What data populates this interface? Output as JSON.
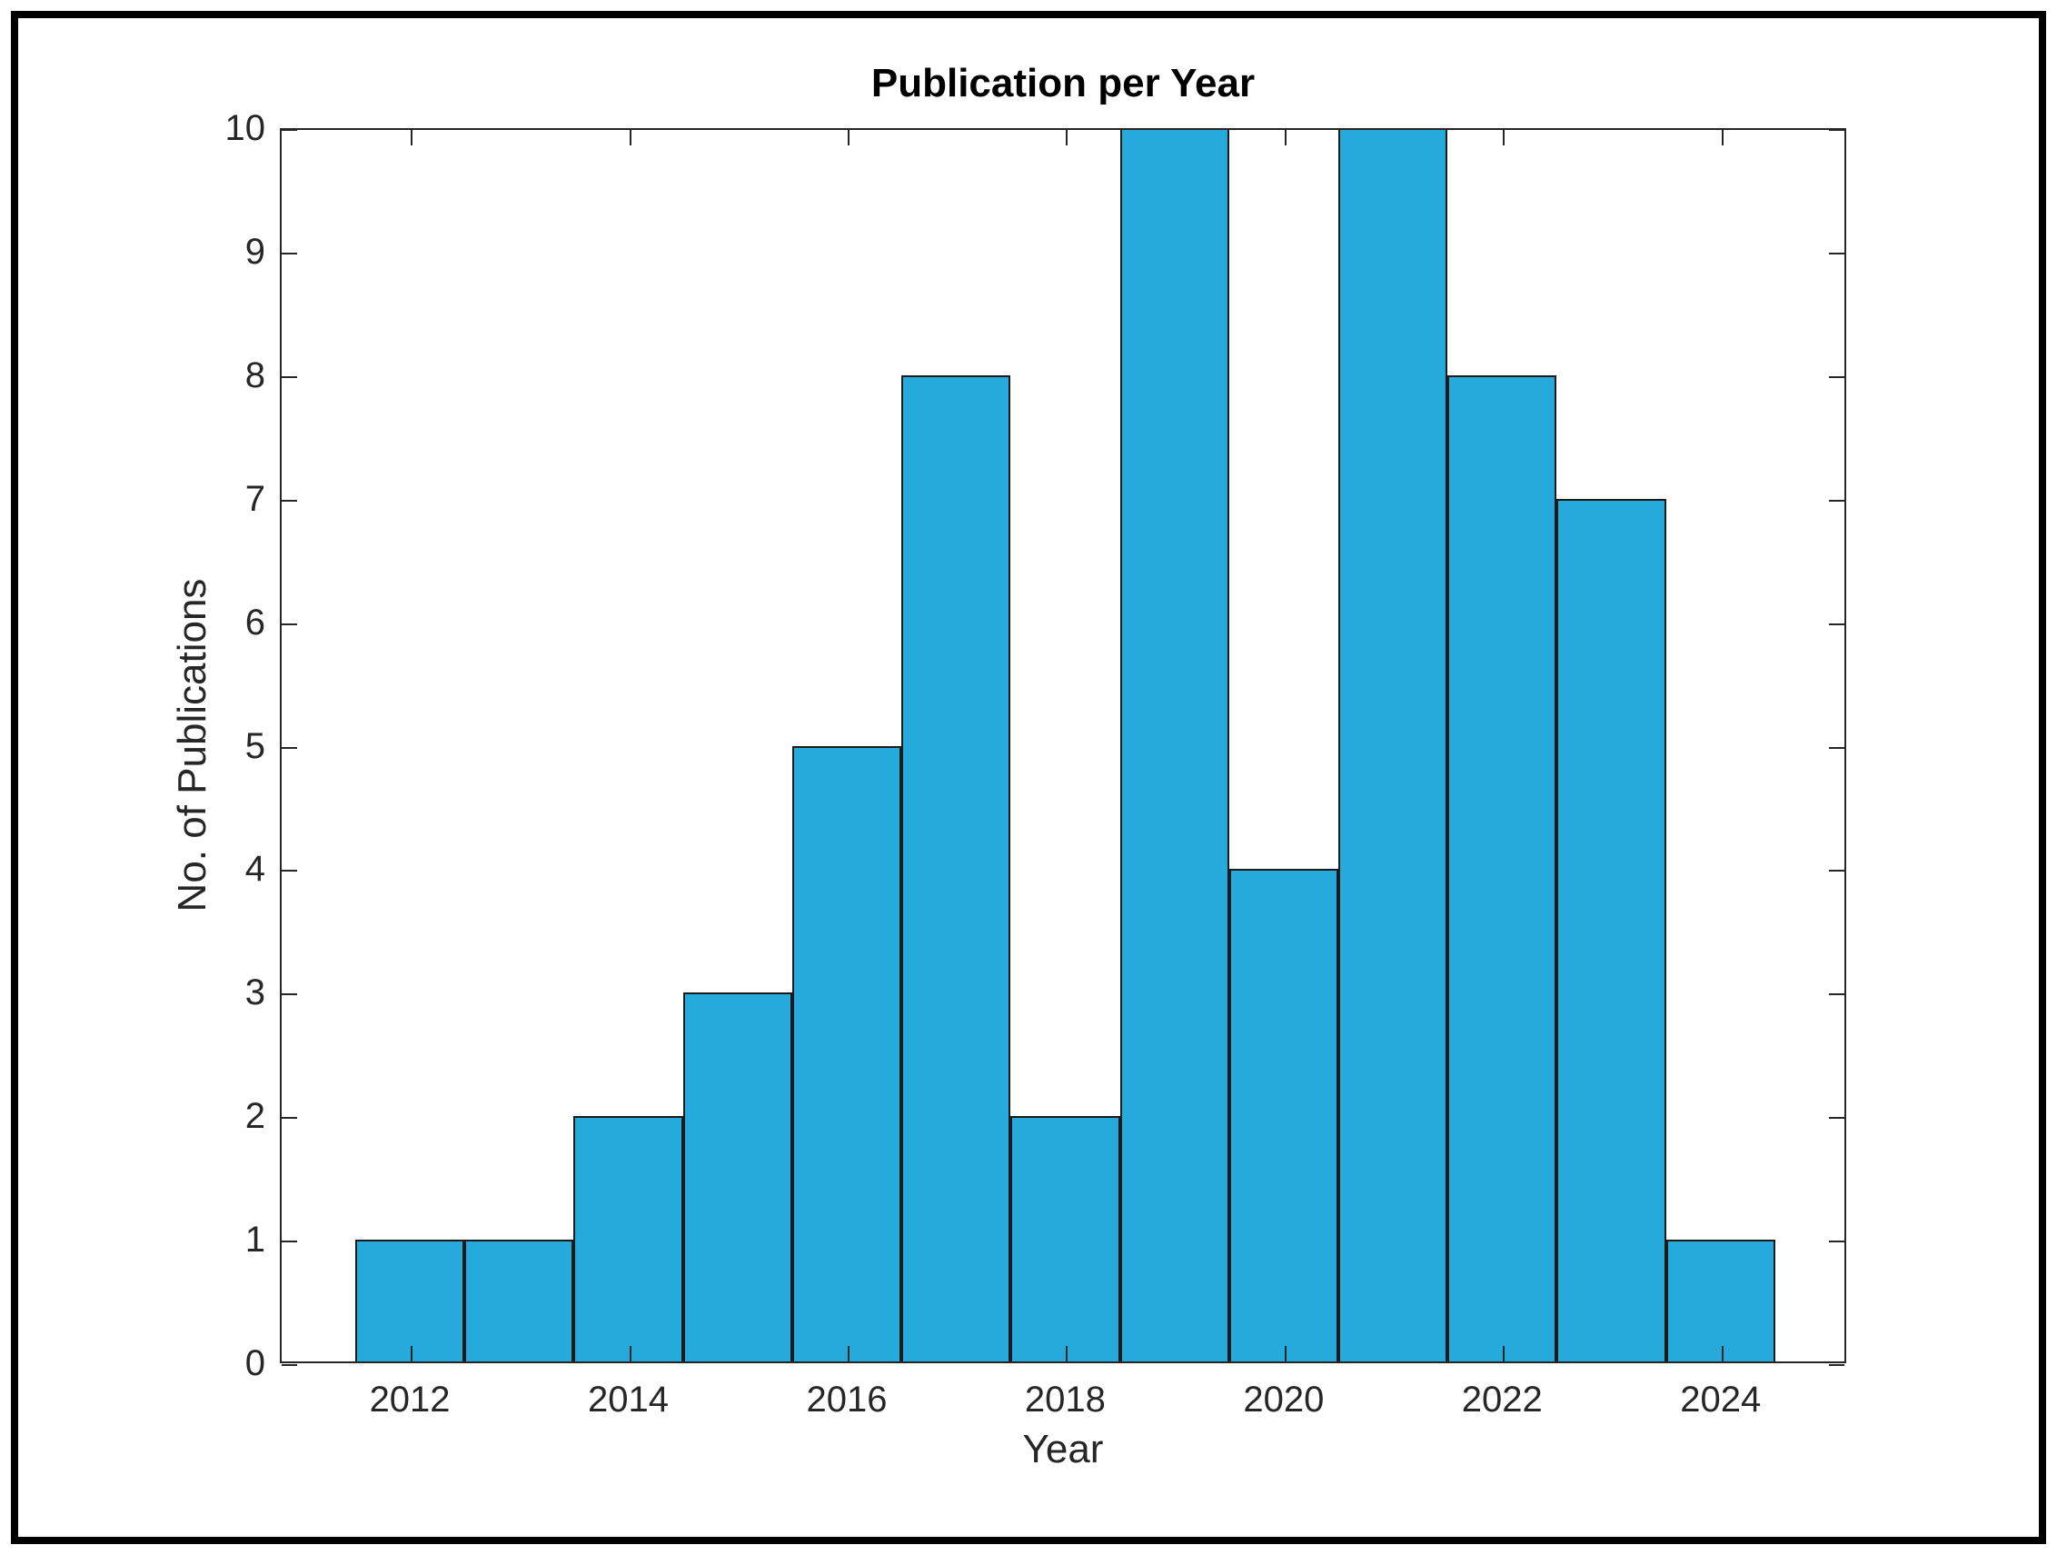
{
  "chart_data": {
    "type": "bar",
    "title": "Publication per Year",
    "xlabel": "Year",
    "ylabel": "No. of Publications",
    "categories": [
      2012,
      2013,
      2014,
      2015,
      2016,
      2017,
      2018,
      2019,
      2020,
      2021,
      2022,
      2023,
      2024
    ],
    "values": [
      1,
      1,
      2,
      3,
      5,
      8,
      2,
      10,
      4,
      10,
      8,
      7,
      1
    ],
    "bar_width": 1.0,
    "xticks": [
      2012,
      2014,
      2016,
      2018,
      2020,
      2022,
      2024
    ],
    "yticks": [
      0,
      1,
      2,
      3,
      4,
      5,
      6,
      7,
      8,
      9,
      10
    ],
    "xlim": [
      2010.81,
      2025.15
    ],
    "ylim": [
      0,
      10
    ],
    "grid": false,
    "legend": null,
    "tick_direction": "in",
    "box": true,
    "colors": {
      "bar_fill": "#25AADB",
      "bar_edge": "#1a1a1a",
      "axis": "#262626",
      "frame": "#000000"
    }
  }
}
